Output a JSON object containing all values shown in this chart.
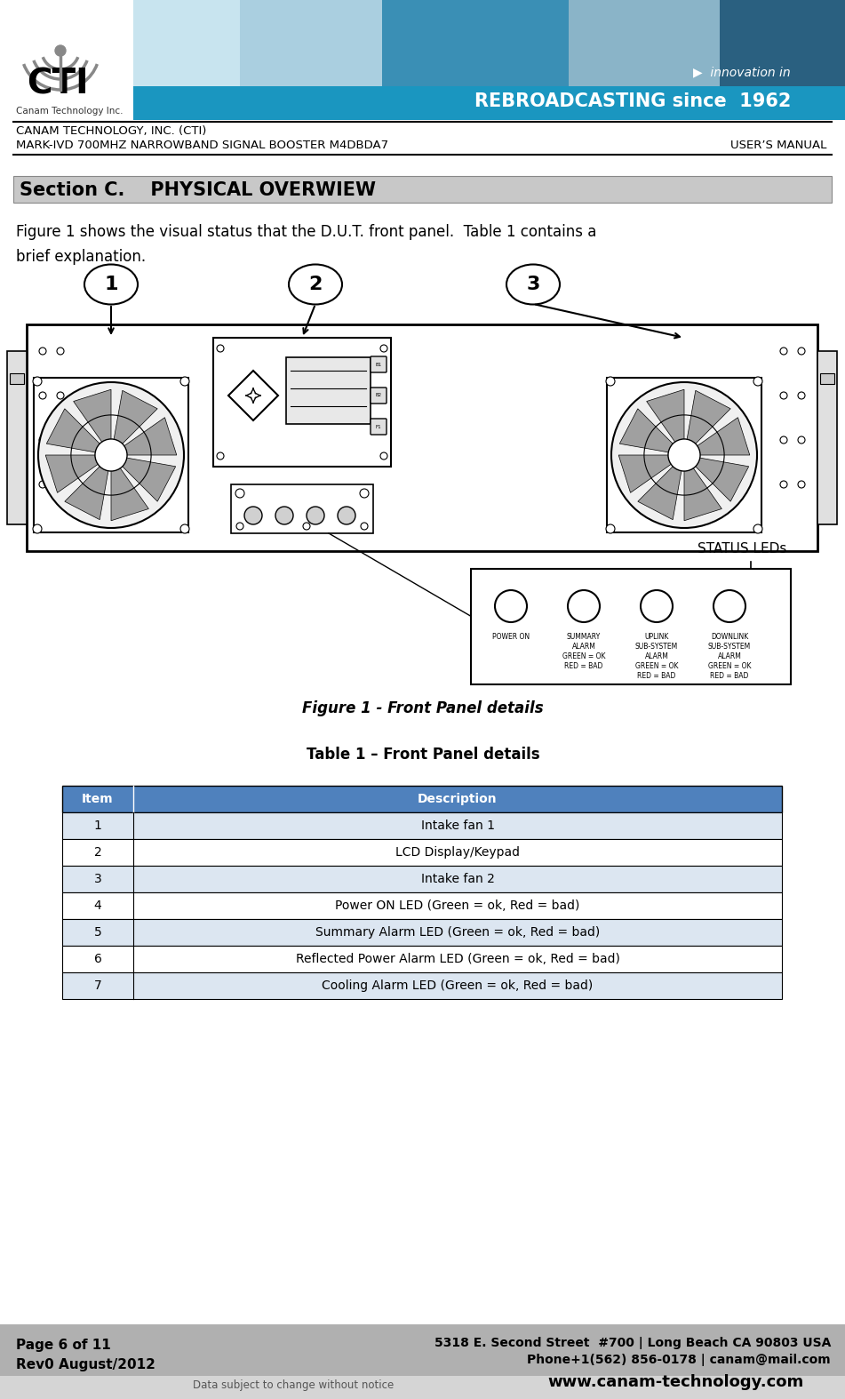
{
  "title_company": "CANAM TECHNOLOGY, INC. (CTI)",
  "title_product": "MARK-IVD 700MHZ NARROWBAND SIGNAL BOOSTER M4DBDA7",
  "title_right": "USER’S MANUAL",
  "section_title": "Section C.    PHYSICAL OVERWIEW",
  "intro_text": "Figure 1 shows the visual status that the D.U.T. front panel.  Table 1 contains a\nbrief explanation.",
  "figure_caption": "Figure 1 - Front Panel details",
  "table_caption": "Table 1 – Front Panel details",
  "table_headers": [
    "Item",
    "Description"
  ],
  "table_rows": [
    [
      "1",
      "Intake fan 1"
    ],
    [
      "2",
      "LCD Display/Keypad"
    ],
    [
      "3",
      "Intake fan 2"
    ],
    [
      "4",
      "Power ON LED (Green = ok, Red = bad)"
    ],
    [
      "5",
      "Summary Alarm LED (Green = ok, Red = bad)"
    ],
    [
      "6",
      "Reflected Power Alarm LED (Green = ok, Red = bad)"
    ],
    [
      "7",
      "Cooling Alarm LED (Green = ok, Red = bad)"
    ]
  ],
  "footer_left": "Page 6 of 11\nRev0 August/2012",
  "footer_center": "5318 E. Second Street  #700 | Long Beach CA 90803 USA\nPhone+1(562) 856-0178 | canam@mail.com",
  "footer_bottom_left": "Data subject to change without notice",
  "footer_bottom_right": "www.canam-technology.com",
  "header_bg_color": "#29acd4",
  "section_bg_color": "#c8c8c8",
  "footer_bg_color": "#b0b0b0",
  "table_header_bg": "#4f81bd",
  "table_row_alt": "#dce6f1",
  "page_bg": "#ffffff",
  "status_labels": [
    "POWER ON",
    "SUMMARY\nALARM\nGREEN = OK\nRED = BAD",
    "UPLINK\nSUB-SYSTEM\nALARM\nGREEN = OK\nRED = BAD",
    "DOWNLINK\nSUB-SYSTEM\nALARM\nGREEN = OK\nRED = BAD"
  ],
  "status_title": "STATUS LEDs"
}
